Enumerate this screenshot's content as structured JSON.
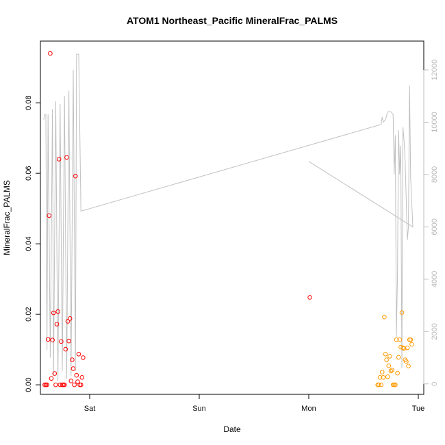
{
  "chart_data": {
    "type": "scatter",
    "title": "ATOM1 Northeast_Pacific MineralFrac_PALMS",
    "xlabel": "Date",
    "ylabel": "MineralFrac_PALMS",
    "x_ticks": [
      "Sat",
      "Sun",
      "Mon",
      "Tue"
    ],
    "x_tick_values": [
      1,
      2,
      3,
      4
    ],
    "xlim": [
      0.55,
      4.05
    ],
    "y_ticks": [
      "0.00",
      "0.02",
      "0.04",
      "0.06",
      "0.08"
    ],
    "y_tick_values": [
      0,
      0.02,
      0.04,
      0.06,
      0.08
    ],
    "ylim": [
      -0.0027,
      0.0975
    ],
    "y2_ticks": [
      "0",
      "2000",
      "4000",
      "6000",
      "8000",
      "10000",
      "12000"
    ],
    "y2_tick_values": [
      0,
      2000,
      4000,
      6000,
      8000,
      10000,
      12000
    ],
    "y2lim": [
      -400,
      13100
    ],
    "grid": false,
    "colors": {
      "red_series": "#ff0000",
      "orange_series": "#ff9900",
      "altitude_line": "#c0c0c0",
      "right_axis": "#bbbbbb"
    },
    "series": [
      {
        "color": "#ff0000",
        "points": [
          [
            0.59,
            0.0
          ],
          [
            0.6,
            0.0
          ],
          [
            0.61,
            0.0
          ],
          [
            0.62,
            0.0129
          ],
          [
            0.63,
            0.048
          ],
          [
            0.64,
            0.094
          ],
          [
            0.65,
            0.0018
          ],
          [
            0.66,
            0.0127
          ],
          [
            0.67,
            0.0204
          ],
          [
            0.68,
            0.0032
          ],
          [
            0.69,
            0.0
          ],
          [
            0.7,
            0.0172
          ],
          [
            0.71,
            0.0208
          ],
          [
            0.72,
            0.064
          ],
          [
            0.73,
            0.0
          ],
          [
            0.74,
            0.0123
          ],
          [
            0.75,
            0.0
          ],
          [
            0.76,
            0.0
          ],
          [
            0.77,
            0.0
          ],
          [
            0.78,
            0.0101
          ],
          [
            0.79,
            0.0645
          ],
          [
            0.8,
            0.018
          ],
          [
            0.81,
            0.0124
          ],
          [
            0.82,
            0.0188
          ],
          [
            0.83,
            0.0011
          ],
          [
            0.84,
            0.0071
          ],
          [
            0.85,
            0.0046
          ],
          [
            0.86,
            0.0
          ],
          [
            0.87,
            0.0592
          ],
          [
            0.88,
            0.0027
          ],
          [
            0.89,
            0.0009
          ],
          [
            0.9,
            0.0087
          ],
          [
            0.91,
            0.0
          ],
          [
            0.92,
            0.0
          ],
          [
            0.93,
            0.0021
          ],
          [
            0.94,
            0.0077
          ],
          [
            3.01,
            0.0248
          ]
        ]
      },
      {
        "color": "#ff9900",
        "points": [
          [
            3.63,
            0.0
          ],
          [
            3.64,
            0.0
          ],
          [
            3.65,
            0.0021
          ],
          [
            3.66,
            0.0
          ],
          [
            3.67,
            0.0036
          ],
          [
            3.68,
            0.0021
          ],
          [
            3.69,
            0.0192
          ],
          [
            3.7,
            0.0087
          ],
          [
            3.71,
            0.0071
          ],
          [
            3.72,
            0.0023
          ],
          [
            3.73,
            0.0054
          ],
          [
            3.74,
            0.0081
          ],
          [
            3.75,
            0.0039
          ],
          [
            3.76,
            0.0042
          ],
          [
            3.77,
            0.0
          ],
          [
            3.78,
            0.0
          ],
          [
            3.79,
            0.0
          ],
          [
            3.8,
            0.0128
          ],
          [
            3.81,
            0.0033
          ],
          [
            3.82,
            0.0078
          ],
          [
            3.83,
            0.0128
          ],
          [
            3.84,
            0.0107
          ],
          [
            3.85,
            0.0205
          ],
          [
            3.86,
            0.0105
          ],
          [
            3.87,
            0.0103
          ],
          [
            3.88,
            0.0071
          ],
          [
            3.89,
            0.0066
          ],
          [
            3.9,
            0.0105
          ],
          [
            3.91,
            0.0053
          ],
          [
            3.92,
            0.0128
          ],
          [
            3.93,
            0.0128
          ],
          [
            3.94,
            0.0115
          ]
        ]
      }
    ],
    "altitude_line": [
      [
        0.58,
        10100
      ],
      [
        0.59,
        10300
      ],
      [
        0.6,
        10300
      ],
      [
        0.61,
        1300
      ],
      [
        0.62,
        10300
      ],
      [
        0.64,
        1000
      ],
      [
        0.66,
        10500
      ],
      [
        0.67,
        300
      ],
      [
        0.69,
        10800
      ],
      [
        0.71,
        100
      ],
      [
        0.73,
        10700
      ],
      [
        0.75,
        500
      ],
      [
        0.77,
        11000
      ],
      [
        0.79,
        200
      ],
      [
        0.81,
        11200
      ],
      [
        0.83,
        300
      ],
      [
        0.85,
        12000
      ],
      [
        0.87,
        500
      ],
      [
        0.88,
        12600
      ],
      [
        0.9,
        12600
      ],
      [
        0.92,
        6600
      ],
      [
        3.65,
        9900
      ],
      [
        3.66,
        9900
      ],
      [
        3.67,
        10200
      ],
      [
        3.68,
        10000
      ],
      [
        3.7,
        10100
      ],
      [
        3.72,
        10400
      ],
      [
        3.75,
        10400
      ],
      [
        3.77,
        10300
      ],
      [
        3.78,
        8000
      ],
      [
        3.79,
        9500
      ],
      [
        3.8,
        1800
      ],
      [
        3.81,
        4200
      ],
      [
        3.82,
        9700
      ],
      [
        3.83,
        8000
      ],
      [
        3.84,
        9100
      ],
      [
        3.85,
        600
      ],
      [
        3.86,
        9800
      ],
      [
        3.87,
        9300
      ],
      [
        3.88,
        8500
      ],
      [
        3.9,
        5500
      ],
      [
        3.91,
        6000
      ],
      [
        3.92,
        11400
      ],
      [
        3.93,
        7900
      ],
      [
        3.95,
        6000
      ],
      [
        3.0,
        8500
      ]
    ]
  }
}
